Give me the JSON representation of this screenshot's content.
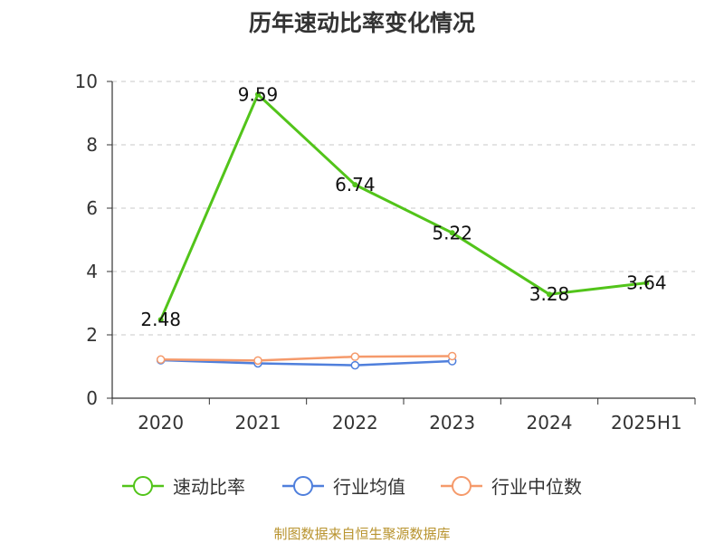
{
  "chart_data": {
    "type": "line",
    "title": "历年速动比率变化情况",
    "categories": [
      "2020",
      "2021",
      "2022",
      "2023",
      "2024",
      "2025H1"
    ],
    "series": [
      {
        "name": "速动比率",
        "values": [
          2.48,
          9.59,
          6.74,
          5.22,
          3.28,
          3.64
        ],
        "color": "#52c41a",
        "labels": [
          "2.48",
          "9.59",
          "6.74",
          "5.22",
          "3.28",
          "3.64"
        ]
      },
      {
        "name": "行业均值",
        "values": [
          1.2,
          1.1,
          1.04,
          1.17,
          null,
          null
        ],
        "color": "#4f7fdc"
      },
      {
        "name": "行业中位数",
        "values": [
          1.22,
          1.19,
          1.31,
          1.33,
          null,
          null
        ],
        "color": "#f59a6b"
      }
    ],
    "ylim": [
      0,
      10
    ],
    "yticks": [
      "0",
      "2",
      "4",
      "6",
      "8",
      "10"
    ],
    "grid": true,
    "legend": "bottom"
  },
  "footer": {
    "source": "制图数据来自恒生聚源数据库"
  }
}
